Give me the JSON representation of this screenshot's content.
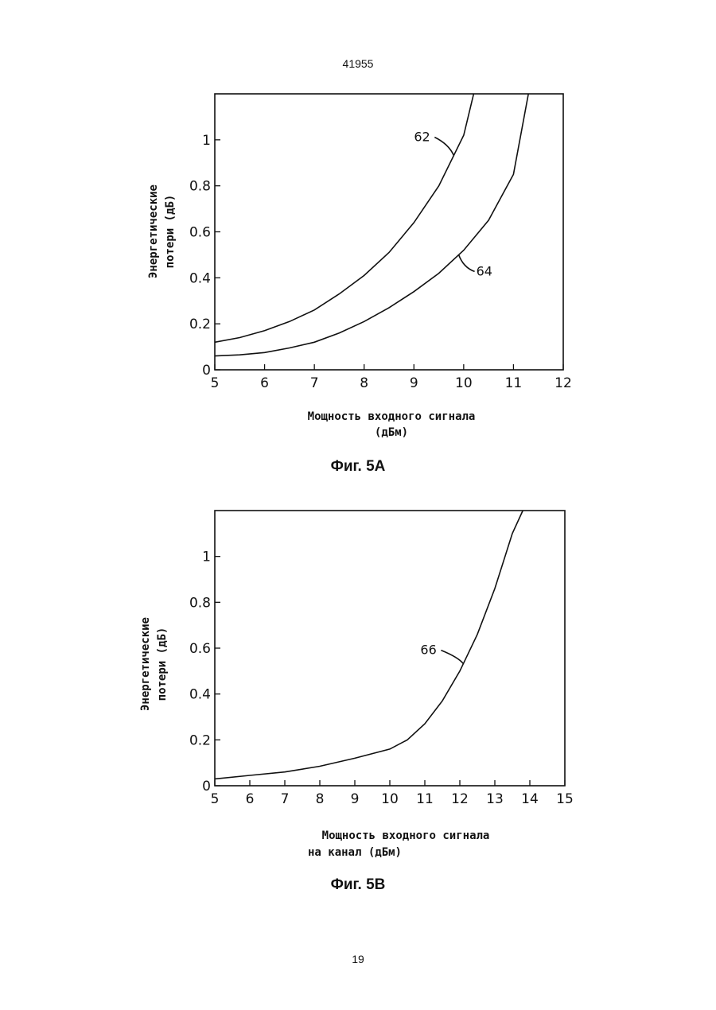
{
  "page": {
    "top_number": "41955",
    "bottom_number": "19"
  },
  "chart_data": [
    {
      "type": "line",
      "caption": "Фиг. 5A",
      "xlabel_lines": [
        "Мощность входного сигнала",
        "(дБм)"
      ],
      "ylabel_lines": [
        "Энергетические",
        "потери (дБ)"
      ],
      "xlim": [
        5,
        12
      ],
      "ylim": [
        0,
        1.2
      ],
      "xticks": [
        5,
        6,
        7,
        8,
        9,
        10,
        11,
        12
      ],
      "yticks": [
        0,
        0.2,
        0.4,
        0.6,
        0.8,
        1
      ],
      "ytick_labels": [
        "0",
        "0.2",
        "0.4",
        "0.6",
        "0.8",
        "1"
      ],
      "series": [
        {
          "name": "62",
          "x": [
            5,
            5.5,
            6,
            6.5,
            7,
            7.5,
            8,
            8.5,
            9,
            9.5,
            10,
            10.2
          ],
          "values": [
            0.12,
            0.14,
            0.17,
            0.21,
            0.26,
            0.33,
            0.41,
            0.51,
            0.64,
            0.8,
            1.02,
            1.2
          ]
        },
        {
          "name": "64",
          "x": [
            5,
            5.5,
            6,
            6.5,
            7,
            7.5,
            8,
            8.5,
            9,
            9.5,
            10,
            10.5,
            11,
            11.3
          ],
          "values": [
            0.06,
            0.065,
            0.075,
            0.095,
            0.12,
            0.16,
            0.21,
            0.27,
            0.34,
            0.42,
            0.52,
            0.65,
            0.85,
            1.2
          ]
        }
      ],
      "annotations": [
        {
          "text": "62",
          "series": "62",
          "at_x": 9.8
        },
        {
          "text": "64",
          "series": "64",
          "at_x": 9.9
        }
      ]
    },
    {
      "type": "line",
      "caption": "Фиг. 5B",
      "xlabel_lines": [
        "Мощность входного сигнала",
        "на канал (дБм)"
      ],
      "ylabel_lines": [
        "Энергетические",
        "потери (дБ)"
      ],
      "xlim": [
        5,
        15
      ],
      "ylim": [
        0,
        1.2
      ],
      "xticks": [
        5,
        6,
        7,
        8,
        9,
        10,
        11,
        12,
        13,
        14,
        15
      ],
      "yticks": [
        0,
        0.2,
        0.4,
        0.6,
        0.8,
        1
      ],
      "ytick_labels": [
        "0",
        "0.2",
        "0.4",
        "0.6",
        "0.8",
        "1"
      ],
      "series": [
        {
          "name": "66",
          "x": [
            5,
            6,
            7,
            8,
            9,
            10,
            10.5,
            11,
            11.5,
            12,
            12.5,
            13,
            13.5,
            13.8
          ],
          "values": [
            0.03,
            0.045,
            0.06,
            0.085,
            0.12,
            0.16,
            0.2,
            0.27,
            0.37,
            0.5,
            0.66,
            0.86,
            1.1,
            1.2
          ]
        }
      ],
      "annotations": [
        {
          "text": "66",
          "series": "66",
          "at_x": 12.1
        }
      ]
    }
  ]
}
